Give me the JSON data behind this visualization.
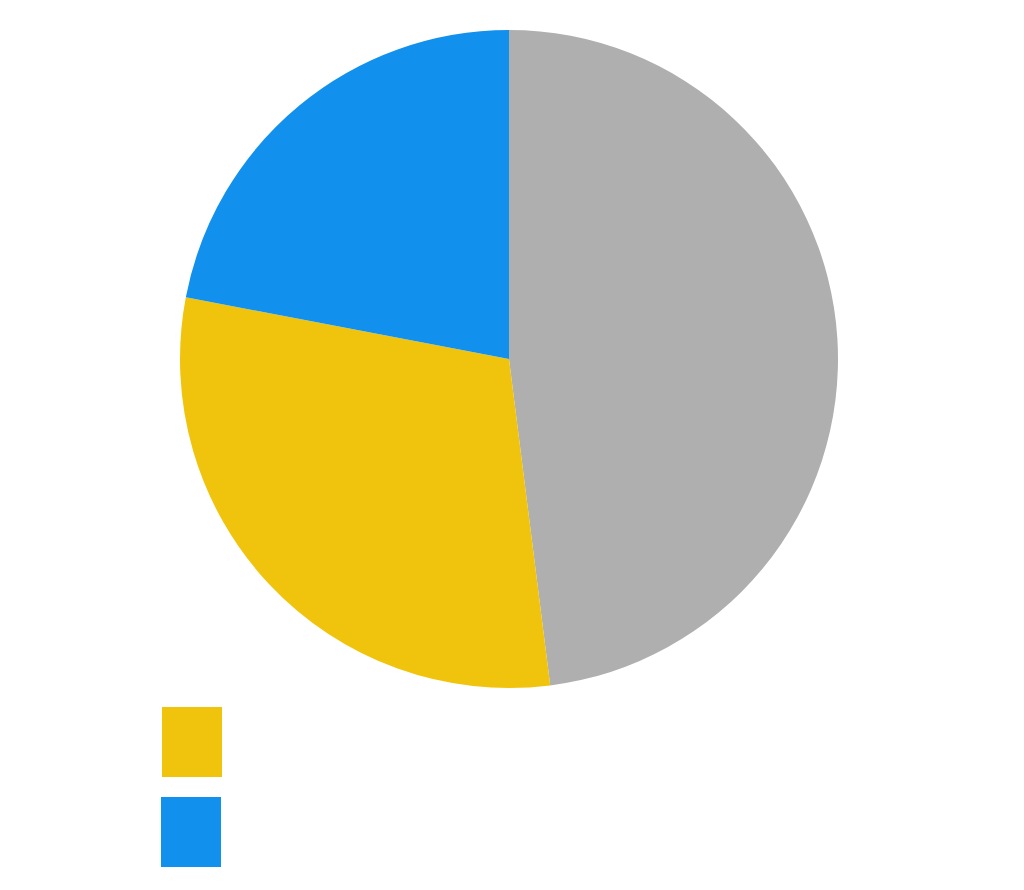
{
  "chart_data": {
    "type": "pie",
    "categories": [
      null,
      null,
      null
    ],
    "values": [
      48,
      30,
      22
    ],
    "colors": [
      "#afafaf",
      "#f0c40c",
      "#1190ee"
    ]
  }
}
